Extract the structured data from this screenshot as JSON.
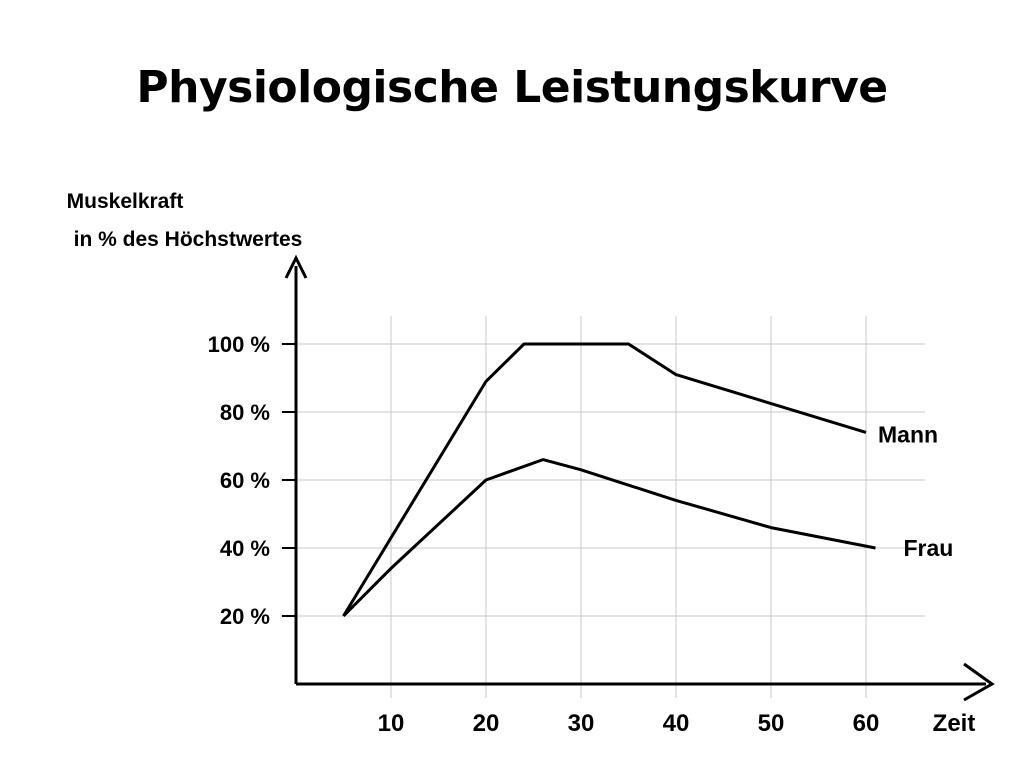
{
  "slide": {
    "title": "Physiologische Leistungskurve"
  },
  "chart_data": {
    "type": "line",
    "title": "Physiologische Leistungskurve",
    "ylabel_line1": "Muskelkraft",
    "ylabel_line2": "in % des Höchstwertes",
    "xlabel": "Zeit",
    "x_ticks": [
      10,
      20,
      30,
      40,
      50,
      60
    ],
    "x_tick_labels": [
      "10",
      "20",
      "30",
      "40",
      "50",
      "60"
    ],
    "y_ticks": [
      20,
      40,
      60,
      80,
      100
    ],
    "y_tick_labels": [
      "20 %",
      "40 %",
      "60 %",
      "80 %",
      "100 %"
    ],
    "xlim": [
      0,
      70
    ],
    "ylim": [
      0,
      120
    ],
    "grid": true,
    "legend": "inline labels at line ends",
    "series": [
      {
        "name": "Mann",
        "x": [
          5,
          20,
          24,
          35,
          40,
          60
        ],
        "y": [
          20,
          89,
          100,
          100,
          91,
          74
        ]
      },
      {
        "name": "Frau",
        "x": [
          5,
          10,
          20,
          26,
          30,
          40,
          50,
          61
        ],
        "y": [
          20,
          34,
          60,
          66,
          63,
          54,
          46,
          40
        ]
      }
    ]
  }
}
